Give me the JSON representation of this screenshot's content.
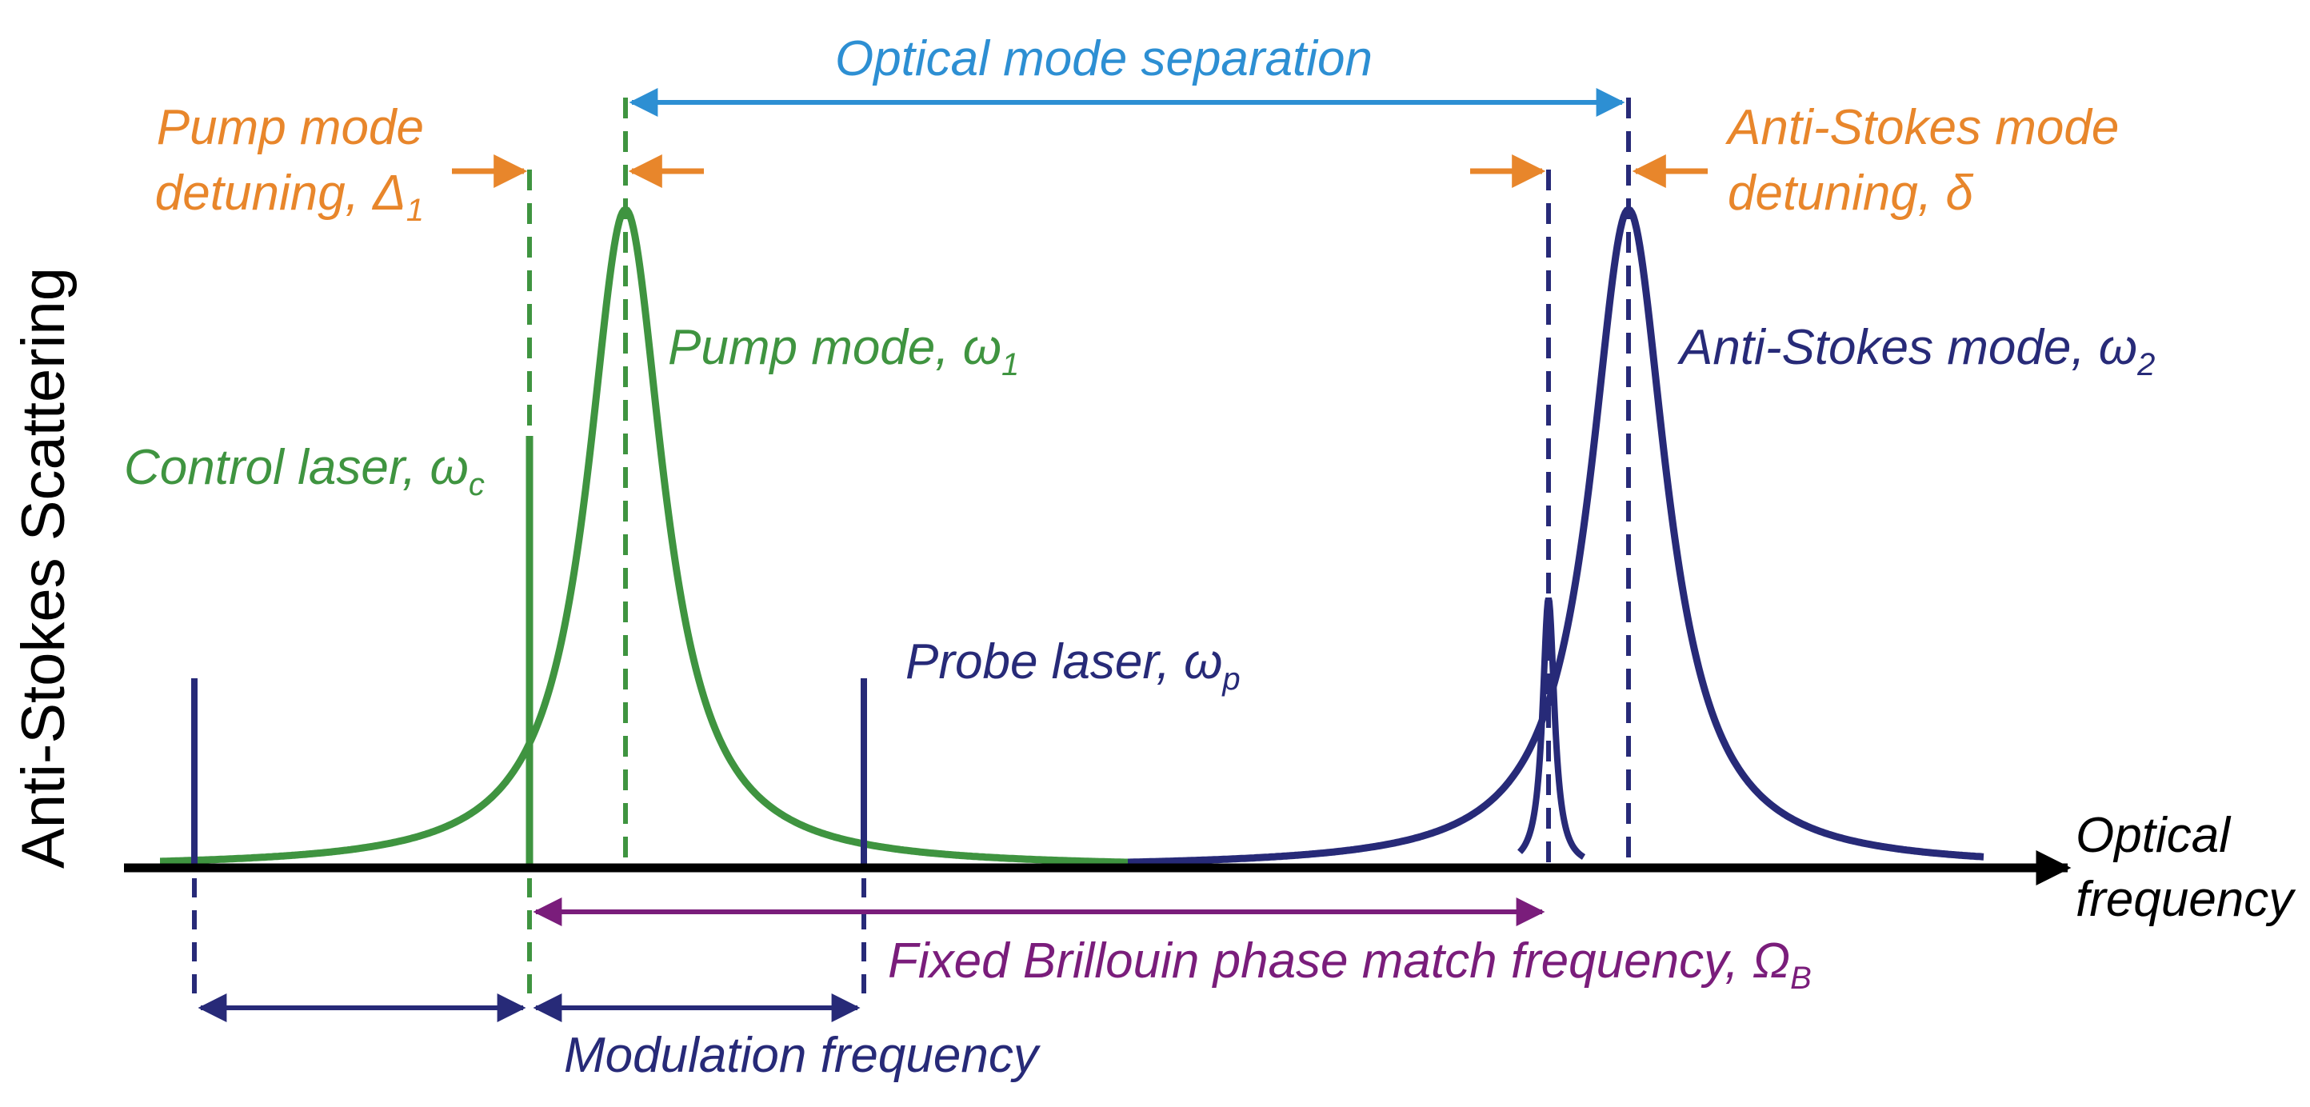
{
  "colors": {
    "green": "#3f9440",
    "navy": "#272a78",
    "orange": "#e8862b",
    "blue": "#2d8fd3",
    "purple": "#7a1d7b",
    "black": "#000000"
  },
  "axis": {
    "y_label": "Anti-Stokes Scattering",
    "x_label_line1": "Optical",
    "x_label_line2": "frequency"
  },
  "labels": {
    "optical_mode_separation": "Optical mode separation",
    "pump_detuning_line1": "Pump mode",
    "pump_detuning_line2": "detuning, ",
    "pump_detuning_symbol": "Δ",
    "pump_detuning_sub": "1",
    "antistokes_detuning_line1": "Anti-Stokes mode",
    "antistokes_detuning_line2": "detuning, ",
    "antistokes_detuning_symbol": "δ",
    "pump_mode": "Pump mode, ",
    "pump_mode_symbol": "ω",
    "pump_mode_sub": "1",
    "antistokes_mode": "Anti-Stokes mode, ",
    "antistokes_mode_symbol": "ω",
    "antistokes_mode_sub": "2",
    "control_laser": "Control laser, ",
    "control_laser_symbol": "ω",
    "control_laser_sub": "c",
    "probe_laser": "Probe laser, ",
    "probe_laser_symbol": "ω",
    "probe_laser_sub": "p",
    "brillouin": "Fixed Brillouin phase match frequency, ",
    "brillouin_symbol": "Ω",
    "brillouin_sub": "B",
    "modulation": "Modulation frequency"
  }
}
